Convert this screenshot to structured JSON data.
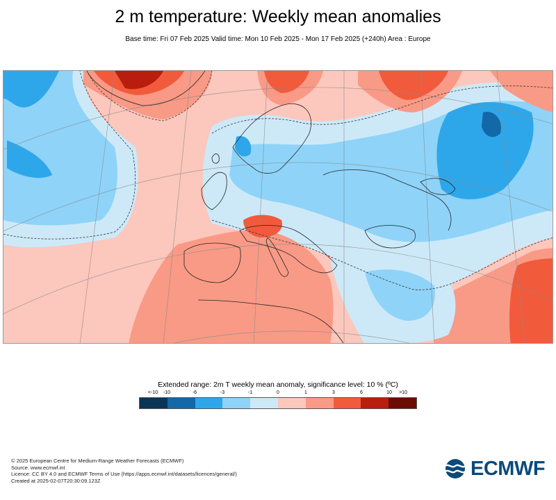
{
  "title": "2 m temperature: Weekly mean anomalies",
  "subtitle": "Base time: Fri 07 Feb 2025 Valid time: Mon 10 Feb 2025 - Mon 17 Feb 2025 (+240h) Area : Europe",
  "map": {
    "area": "Europe",
    "projection": "conic with curved graticule",
    "content": "filled contours of 2 m temperature weekly mean anomaly; warm anomalies over the Atlantic, Iberia, Mediterranean, Greenland and northern Scandinavia; cold anomalies over Labrador/Baffin, Norway, central and eastern Europe, western Russia and the Black Sea area"
  },
  "legend": {
    "title": "Extended range: 2m T weekly mean anomaly, significance level: 10 % (ºC)",
    "tick_labels": [
      "<-10",
      "-10",
      "-6",
      "-3",
      "-1",
      "0",
      "1",
      "3",
      "6",
      "10",
      ">10"
    ],
    "colors": [
      "#0a3556",
      "#1368a8",
      "#2ea7ea",
      "#8fd3f8",
      "#cde9f8",
      "#fcc7bd",
      "#f99a86",
      "#f25a3c",
      "#b81d0d",
      "#6b0c02"
    ]
  },
  "credits": [
    "© 2025 European Centre for Medium-Range Weather Forecasts (ECMWF)",
    "Source: www.ecmwf.int",
    "Licence: CC BY 4.0 and ECMWF Terms of Use (https://apps.ecmwf.int/datasets/licences/general/)",
    "Created at 2025-02-07T20:30:09.123Z"
  ],
  "logo": {
    "text": "ECMWF",
    "color": "#0b4a7a"
  }
}
